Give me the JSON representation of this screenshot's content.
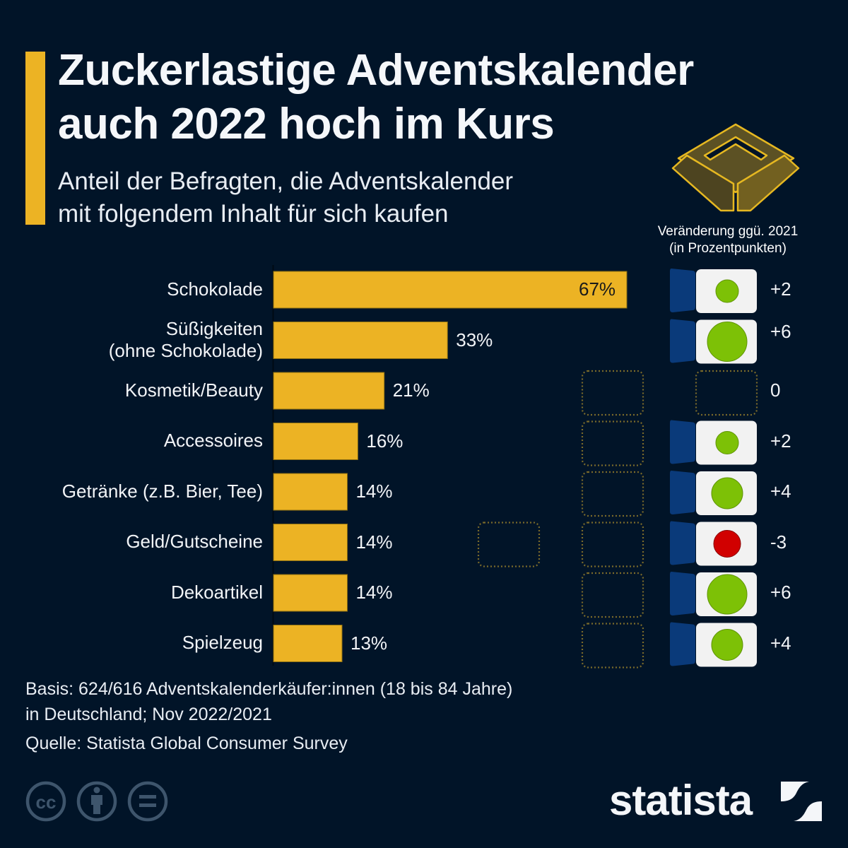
{
  "header": {
    "title_line1": "Zuckerlastige Adventskalender",
    "title_line2": "auch 2022 hoch im Kurs",
    "subtitle_line1": "Anteil der Befragten, die Adventskalender",
    "subtitle_line2": "mit folgendem Inhalt für sich kaufen",
    "change_header_line1": "Veränderung ggü. 2021",
    "change_header_line2": "(in Prozentpunkten)"
  },
  "colors": {
    "background": "#011428",
    "bar": "#ecb324",
    "accent": "#ecb324",
    "door_blue": "#0a3a7a",
    "door_box": "#f2f2f2",
    "positive": "#7dc106",
    "negative": "#d10000",
    "placeholder_dots": "#7a6a2a",
    "gold_icon": "#6b5a1e",
    "gold_icon_edge": "#e6b821",
    "cc_icons": "#3e556c"
  },
  "chart_data": {
    "type": "bar",
    "orientation": "horizontal",
    "title": "Zuckerlastige Adventskalender auch 2022 hoch im Kurs",
    "subtitle": "Anteil der Befragten, die Adventskalender mit folgendem Inhalt für sich kaufen",
    "categories": [
      "Schokolade",
      "Süßigkeiten (ohne Schokolade)",
      "Kosmetik/Beauty",
      "Accessoires",
      "Getränke (z.B. Bier, Tee)",
      "Geld/Gutscheine",
      "Dekoartikel",
      "Spielzeug"
    ],
    "category_lines": [
      [
        "Schokolade"
      ],
      [
        "Süßigkeiten",
        "(ohne Schokolade)"
      ],
      [
        "Kosmetik/Beauty"
      ],
      [
        "Accessoires"
      ],
      [
        "Getränke (z.B. Bier, Tee)"
      ],
      [
        "Geld/Gutscheine"
      ],
      [
        "Dekoartikel"
      ],
      [
        "Spielzeug"
      ]
    ],
    "values": [
      67,
      33,
      21,
      16,
      14,
      14,
      14,
      13
    ],
    "value_labels": [
      "67%",
      "33%",
      "21%",
      "16%",
      "14%",
      "14%",
      "14%",
      "13%"
    ],
    "unit": "%",
    "xlim": [
      0,
      100
    ],
    "grid": false,
    "change_vs_2021": {
      "label": "Veränderung ggü. 2021 (in Prozentpunkten)",
      "values": [
        2,
        6,
        0,
        2,
        4,
        -3,
        6,
        4
      ],
      "labels": [
        "+2",
        "+6",
        "0",
        "+2",
        "+4",
        "-3",
        "+6",
        "+4"
      ]
    }
  },
  "footer": {
    "basis_line1": "Basis: 624/616 Adventskalenderkäufer:innen (18 bis 84 Jahre)",
    "basis_line2": "in Deutschland; Nov 2022/2021",
    "source": "Quelle: Statista Global Consumer Survey",
    "brand": "statista",
    "license_icons": [
      "cc-icon",
      "attribution-icon",
      "no-derivatives-icon"
    ]
  }
}
